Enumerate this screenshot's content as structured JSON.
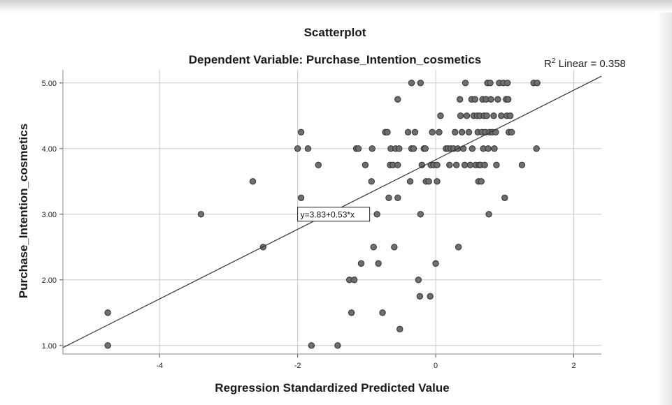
{
  "chart_data": {
    "type": "scatter",
    "title": "Scatterplot",
    "subtitle": "Dependent Variable: Purchase_Intention_cosmetics",
    "xlabel": "Regression Standardized Predicted Value",
    "ylabel": "Purchase_Intention_cosmetics",
    "xlim": [
      -5.4,
      2.4
    ],
    "ylim": [
      0.87,
      5.2
    ],
    "x_ticks": [
      -4,
      -2,
      0,
      2
    ],
    "x_tick_labels": [
      "-4",
      "-2",
      "0",
      "2"
    ],
    "y_ticks": [
      1,
      2,
      3,
      4,
      5
    ],
    "y_tick_labels": [
      "1.00",
      "2.00",
      "3.00",
      "4.00",
      "5.00"
    ],
    "grid": true,
    "fit_line": {
      "intercept": 3.83,
      "slope": 0.53,
      "equation_label": "y=3.83+0.53*x",
      "equation_anchor_x": -2.0,
      "equation_anchor_y": 3.0
    },
    "r2_label": {
      "prefix": "R",
      "superscript": "2",
      "suffix": " Linear = 0.358"
    },
    "colors": {
      "point_fill": "#6e6e6e",
      "point_stroke": "#303030",
      "grid": "#c8c8c8",
      "line": "#333333"
    },
    "points": [
      [
        -4.75,
        1.0
      ],
      [
        -4.75,
        1.5
      ],
      [
        -3.4,
        3.0
      ],
      [
        -2.65,
        3.5
      ],
      [
        -2.5,
        2.5
      ],
      [
        -2.0,
        4.0
      ],
      [
        -1.95,
        4.25
      ],
      [
        -1.95,
        3.25
      ],
      [
        -1.85,
        4.0
      ],
      [
        -1.8,
        1.0
      ],
      [
        -1.7,
        3.75
      ],
      [
        -1.42,
        1.0
      ],
      [
        -1.25,
        2.0
      ],
      [
        -1.22,
        1.5
      ],
      [
        -1.18,
        2.0
      ],
      [
        -1.15,
        4.0
      ],
      [
        -1.12,
        4.0
      ],
      [
        -1.08,
        2.25
      ],
      [
        -1.02,
        3.75
      ],
      [
        -0.93,
        3.5
      ],
      [
        -0.92,
        4.0
      ],
      [
        -0.9,
        2.5
      ],
      [
        -0.85,
        3.0
      ],
      [
        -0.83,
        2.25
      ],
      [
        -0.77,
        1.5
      ],
      [
        -0.73,
        4.25
      ],
      [
        -0.7,
        4.25
      ],
      [
        -0.68,
        3.25
      ],
      [
        -0.66,
        3.75
      ],
      [
        -0.65,
        4.0
      ],
      [
        -0.62,
        3.75
      ],
      [
        -0.6,
        2.5
      ],
      [
        -0.58,
        4.0
      ],
      [
        -0.55,
        3.25
      ],
      [
        -0.55,
        3.75
      ],
      [
        -0.55,
        4.75
      ],
      [
        -0.53,
        4.0
      ],
      [
        -0.52,
        1.25
      ],
      [
        -0.4,
        4.25
      ],
      [
        -0.37,
        3.5
      ],
      [
        -0.35,
        4.0
      ],
      [
        -0.35,
        5.0
      ],
      [
        -0.32,
        4.0
      ],
      [
        -0.3,
        4.25
      ],
      [
        -0.25,
        2.0
      ],
      [
        -0.23,
        1.75
      ],
      [
        -0.22,
        3.0
      ],
      [
        -0.22,
        5.0
      ],
      [
        -0.2,
        3.75
      ],
      [
        -0.17,
        4.0
      ],
      [
        -0.15,
        4.0
      ],
      [
        -0.14,
        3.5
      ],
      [
        -0.1,
        3.5
      ],
      [
        -0.08,
        1.75
      ],
      [
        -0.07,
        3.75
      ],
      [
        -0.05,
        4.25
      ],
      [
        -0.03,
        3.75
      ],
      [
        0.0,
        2.25
      ],
      [
        0.02,
        3.5
      ],
      [
        0.02,
        3.75
      ],
      [
        0.05,
        4.25
      ],
      [
        0.07,
        4.5
      ],
      [
        0.15,
        4.0
      ],
      [
        0.18,
        4.0
      ],
      [
        0.2,
        3.75
      ],
      [
        0.22,
        4.0
      ],
      [
        0.26,
        4.0
      ],
      [
        0.28,
        4.25
      ],
      [
        0.3,
        3.75
      ],
      [
        0.32,
        4.0
      ],
      [
        0.33,
        2.5
      ],
      [
        0.35,
        4.75
      ],
      [
        0.36,
        4.5
      ],
      [
        0.38,
        4.25
      ],
      [
        0.4,
        4.0
      ],
      [
        0.42,
        3.75
      ],
      [
        0.43,
        5.0
      ],
      [
        0.45,
        4.5
      ],
      [
        0.48,
        4.25
      ],
      [
        0.5,
        3.75
      ],
      [
        0.52,
        4.75
      ],
      [
        0.53,
        4.0
      ],
      [
        0.55,
        4.5
      ],
      [
        0.57,
        4.75
      ],
      [
        0.58,
        3.75
      ],
      [
        0.6,
        4.5
      ],
      [
        0.61,
        4.25
      ],
      [
        0.62,
        3.5
      ],
      [
        0.63,
        3.75
      ],
      [
        0.64,
        4.5
      ],
      [
        0.65,
        3.75
      ],
      [
        0.66,
        3.5
      ],
      [
        0.67,
        4.25
      ],
      [
        0.68,
        4.75
      ],
      [
        0.69,
        4.0
      ],
      [
        0.7,
        4.5
      ],
      [
        0.71,
        3.75
      ],
      [
        0.72,
        4.25
      ],
      [
        0.73,
        4.75
      ],
      [
        0.74,
        4.5
      ],
      [
        0.75,
        5.0
      ],
      [
        0.76,
        4.0
      ],
      [
        0.77,
        3.0
      ],
      [
        0.78,
        4.25
      ],
      [
        0.79,
        5.0
      ],
      [
        0.8,
        4.75
      ],
      [
        0.82,
        4.25
      ],
      [
        0.84,
        4.5
      ],
      [
        0.85,
        4.0
      ],
      [
        0.87,
        4.25
      ],
      [
        0.88,
        3.75
      ],
      [
        0.9,
        4.75
      ],
      [
        0.92,
        5.0
      ],
      [
        0.95,
        4.5
      ],
      [
        0.98,
        5.0
      ],
      [
        1.0,
        3.25
      ],
      [
        1.02,
        4.75
      ],
      [
        1.03,
        4.5
      ],
      [
        1.04,
        5.0
      ],
      [
        1.05,
        4.75
      ],
      [
        1.06,
        4.25
      ],
      [
        1.08,
        4.5
      ],
      [
        1.1,
        4.25
      ],
      [
        1.25,
        3.75
      ],
      [
        1.42,
        5.0
      ],
      [
        1.46,
        4.0
      ],
      [
        1.47,
        5.0
      ]
    ]
  }
}
